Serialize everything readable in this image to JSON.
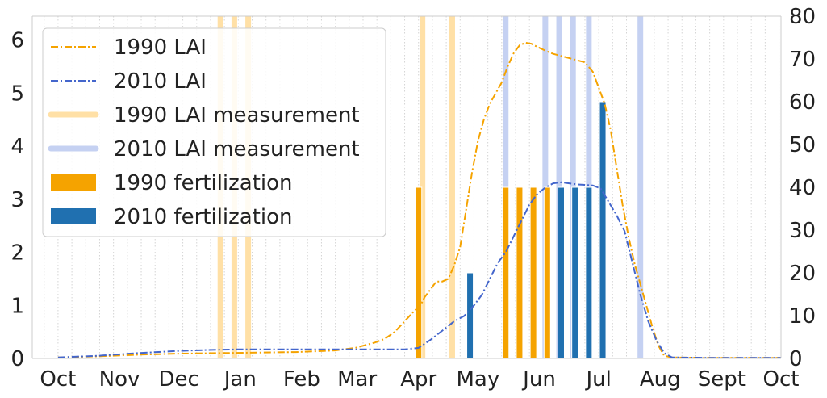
{
  "chart_data": {
    "type": "line",
    "x_unit": "days since Oct 1",
    "x_ticks": [
      {
        "label": "Oct",
        "x": 0
      },
      {
        "label": "Nov",
        "x": 31
      },
      {
        "label": "Dec",
        "x": 61
      },
      {
        "label": "Jan",
        "x": 92
      },
      {
        "label": "Feb",
        "x": 123
      },
      {
        "label": "Mar",
        "x": 151
      },
      {
        "label": "Apr",
        "x": 182
      },
      {
        "label": "May",
        "x": 212
      },
      {
        "label": "Jun",
        "x": 243
      },
      {
        "label": "Jul",
        "x": 273
      },
      {
        "label": "Aug",
        "x": 304
      },
      {
        "label": "Sept",
        "x": 335
      },
      {
        "label": "Oct",
        "x": 365
      }
    ],
    "xlim": [
      -13,
      365
    ],
    "ylim_left": [
      0,
      6.45
    ],
    "yticks_left": [
      0,
      1,
      2,
      3,
      4,
      5,
      6
    ],
    "ylim_right": [
      0,
      80
    ],
    "yticks_right": [
      0,
      10,
      20,
      30,
      40,
      50,
      60,
      70,
      80
    ],
    "grid": true,
    "legend_position": "top-left",
    "series": [
      {
        "name": "1990 LAI",
        "color": "#f5a300",
        "style": "dashdot",
        "axis": "left",
        "points": [
          [
            0,
            0.02
          ],
          [
            20,
            0.04
          ],
          [
            40,
            0.07
          ],
          [
            60,
            0.09
          ],
          [
            80,
            0.1
          ],
          [
            100,
            0.11
          ],
          [
            120,
            0.12
          ],
          [
            140,
            0.15
          ],
          [
            150,
            0.2
          ],
          [
            160,
            0.3
          ],
          [
            165,
            0.37
          ],
          [
            170,
            0.5
          ],
          [
            175,
            0.7
          ],
          [
            180,
            0.9
          ],
          [
            183,
            1.0
          ],
          [
            185,
            1.15
          ],
          [
            188,
            1.3
          ],
          [
            191,
            1.45
          ],
          [
            194,
            1.45
          ],
          [
            197,
            1.5
          ],
          [
            200,
            1.75
          ],
          [
            203,
            2.1
          ],
          [
            206,
            2.8
          ],
          [
            209,
            3.5
          ],
          [
            212,
            4.1
          ],
          [
            215,
            4.5
          ],
          [
            218,
            4.8
          ],
          [
            221,
            5.0
          ],
          [
            224,
            5.2
          ],
          [
            227,
            5.5
          ],
          [
            230,
            5.75
          ],
          [
            233,
            5.9
          ],
          [
            236,
            5.95
          ],
          [
            239,
            5.93
          ],
          [
            242,
            5.87
          ],
          [
            246,
            5.8
          ],
          [
            250,
            5.74
          ],
          [
            256,
            5.68
          ],
          [
            262,
            5.62
          ],
          [
            266,
            5.58
          ],
          [
            270,
            5.4
          ],
          [
            273,
            5.1
          ],
          [
            276,
            4.8
          ],
          [
            279,
            4.3
          ],
          [
            282,
            3.6
          ],
          [
            285,
            2.9
          ],
          [
            288,
            2.3
          ],
          [
            291,
            1.8
          ],
          [
            294,
            1.4
          ],
          [
            297,
            1.0
          ],
          [
            300,
            0.6
          ],
          [
            303,
            0.25
          ],
          [
            306,
            0.05
          ],
          [
            310,
            0.02
          ],
          [
            330,
            0.01
          ],
          [
            365,
            0.01
          ]
        ]
      },
      {
        "name": "2010 LAI",
        "color": "#4466cc",
        "style": "dashdot",
        "axis": "left",
        "points": [
          [
            0,
            0.02
          ],
          [
            20,
            0.05
          ],
          [
            40,
            0.1
          ],
          [
            60,
            0.14
          ],
          [
            75,
            0.16
          ],
          [
            90,
            0.17
          ],
          [
            120,
            0.17
          ],
          [
            150,
            0.17
          ],
          [
            165,
            0.17
          ],
          [
            175,
            0.17
          ],
          [
            182,
            0.2
          ],
          [
            188,
            0.35
          ],
          [
            195,
            0.55
          ],
          [
            200,
            0.7
          ],
          [
            205,
            0.8
          ],
          [
            210,
            1.0
          ],
          [
            214,
            1.2
          ],
          [
            218,
            1.5
          ],
          [
            222,
            1.8
          ],
          [
            226,
            2.0
          ],
          [
            230,
            2.3
          ],
          [
            234,
            2.6
          ],
          [
            238,
            2.9
          ],
          [
            242,
            3.1
          ],
          [
            246,
            3.22
          ],
          [
            250,
            3.3
          ],
          [
            254,
            3.32
          ],
          [
            258,
            3.3
          ],
          [
            262,
            3.28
          ],
          [
            266,
            3.27
          ],
          [
            270,
            3.26
          ],
          [
            274,
            3.2
          ],
          [
            278,
            2.95
          ],
          [
            282,
            2.7
          ],
          [
            286,
            2.4
          ],
          [
            290,
            1.8
          ],
          [
            294,
            1.2
          ],
          [
            298,
            0.7
          ],
          [
            302,
            0.35
          ],
          [
            306,
            0.1
          ],
          [
            310,
            0.02
          ],
          [
            330,
            0.01
          ],
          [
            365,
            0.01
          ]
        ]
      }
    ],
    "measurements": [
      {
        "name": "1990 LAI measurement",
        "color": "#ffe0a6",
        "x": [
          82,
          89,
          96,
          184,
          199
        ]
      },
      {
        "name": "2010 LAI measurement",
        "color": "#c5d1f2",
        "x": [
          226,
          246,
          253,
          260,
          268,
          294
        ]
      }
    ],
    "fertilization": [
      {
        "name": "1990 fertilization",
        "color": "#f5a300",
        "axis": "right",
        "bars": [
          [
            182,
            40
          ],
          [
            226,
            40
          ],
          [
            233,
            40
          ],
          [
            240,
            40
          ],
          [
            247,
            40
          ]
        ]
      },
      {
        "name": "2010 fertilization",
        "color": "#2070b0",
        "axis": "right",
        "bars": [
          [
            208,
            20
          ],
          [
            254,
            40
          ],
          [
            261,
            40
          ],
          [
            268,
            40
          ],
          [
            275,
            60
          ]
        ]
      }
    ]
  }
}
